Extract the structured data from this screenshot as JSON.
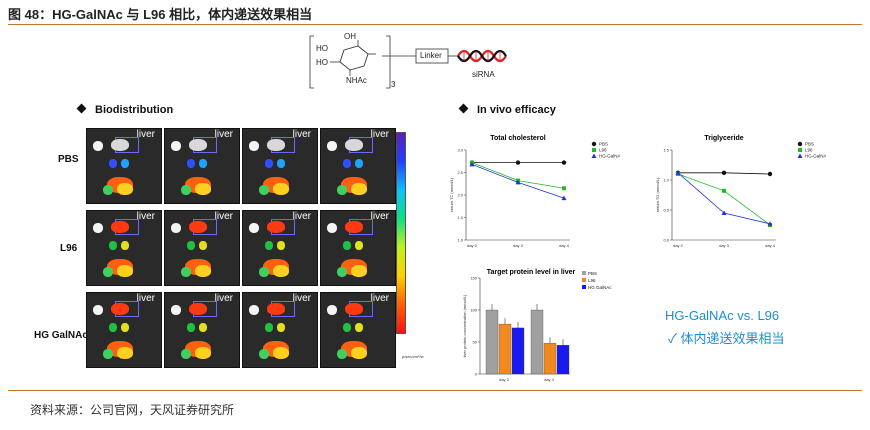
{
  "figure_title": "图 48：HG-GalNAc 与 L96 相比，体内递送效果相当",
  "source": "资料来源：公司官网，天风证券研究所",
  "structure": {
    "oh1": "HO",
    "oh2": "OH",
    "oh3": "HO",
    "nhac": "NHAc",
    "subscript": "3",
    "linker": "Linker",
    "sirna": "siRNA"
  },
  "biodistribution": {
    "heading": "Biodistribution",
    "row_labels": [
      "PBS",
      "L96",
      "HG GalNAc"
    ],
    "organ_label": "liver",
    "colorbar_label": "p/sec/cm²/sr"
  },
  "efficacy": {
    "heading": "In vivo efficacy",
    "summary_title": "HG-GalNAc vs. L96",
    "summary_text": "✓  体内递送效果相当"
  },
  "chart_data": [
    {
      "type": "line",
      "title": "Total cholesterol",
      "ylabel": "serum TC (mmol/L)",
      "categories": [
        "day 0",
        "day 3",
        "day 4"
      ],
      "ylim": [
        1.0,
        3.0
      ],
      "yticks": [
        "1.0",
        "1.5",
        "2.0",
        "2.5",
        "3.0"
      ],
      "series": [
        {
          "name": "PBS",
          "color": "#111111",
          "marker": "circle",
          "values": [
            2.72,
            2.72,
            2.72
          ]
        },
        {
          "name": "L96",
          "color": "#22bb22",
          "marker": "square",
          "values": [
            2.72,
            2.32,
            2.15
          ]
        },
        {
          "name": "HG-GalNAc",
          "color": "#2233dd",
          "marker": "triangle",
          "values": [
            2.68,
            2.28,
            1.93
          ]
        }
      ]
    },
    {
      "type": "line",
      "title": "Triglyceride",
      "ylabel": "serum TG (mmol/L)",
      "categories": [
        "day 0",
        "day 3",
        "day 4"
      ],
      "ylim": [
        0.0,
        1.5
      ],
      "yticks": [
        "0.0",
        "0.5",
        "1.0",
        "1.5"
      ],
      "series": [
        {
          "name": "PBS",
          "color": "#111111",
          "marker": "circle",
          "values": [
            1.12,
            1.12,
            1.1
          ]
        },
        {
          "name": "L96",
          "color": "#22bb22",
          "marker": "square",
          "values": [
            1.1,
            0.82,
            0.25
          ]
        },
        {
          "name": "HG-GalNAc",
          "color": "#2233dd",
          "marker": "triangle",
          "values": [
            1.12,
            0.45,
            0.27
          ]
        }
      ]
    },
    {
      "type": "bar",
      "title": "Target protein level in liver",
      "ylabel": "liver protein concentration (mmol/L)",
      "categories": [
        "day 3",
        "day 4"
      ],
      "ylim": [
        0,
        150
      ],
      "yticks": [
        "0",
        "50",
        "100",
        "150"
      ],
      "series": [
        {
          "name": "PBS",
          "color": "#a0a0a0",
          "values": [
            100,
            100
          ]
        },
        {
          "name": "L96",
          "color": "#f08a20",
          "values": [
            78,
            48
          ]
        },
        {
          "name": "HG GalNAc",
          "color": "#1a1aee",
          "values": [
            72,
            45
          ]
        }
      ]
    }
  ]
}
